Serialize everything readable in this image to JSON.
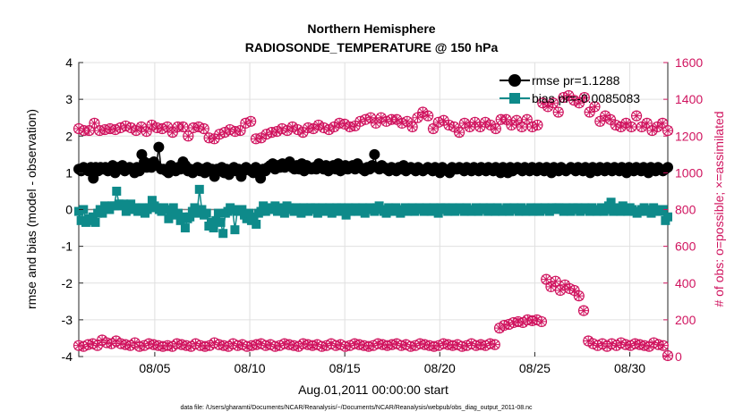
{
  "chart_data": {
    "type": "line",
    "title": "Northern Hemisphere",
    "subtitle": "RADIOSONDE_TEMPERATURE @ 150 hPa",
    "xlabel": "Aug.01,2011 00:00:00 start",
    "ylabel_left": "rmse and bias (model - observation)",
    "ylabel_right": "# of obs: o=possible; ×=assimilated",
    "x_ticks": [
      "08/05",
      "08/10",
      "08/15",
      "08/20",
      "08/25",
      "08/30"
    ],
    "x_tick_days": [
      5,
      10,
      15,
      20,
      25,
      30
    ],
    "xlim_days": [
      1,
      32
    ],
    "y_left_ticks": [
      "4",
      "3",
      "2",
      "1",
      "0",
      "-1",
      "-2",
      "-3",
      "-4"
    ],
    "ylim_left": [
      -4,
      4
    ],
    "y_right_ticks": [
      "1600",
      "1400",
      "1200",
      "1000",
      "800",
      "600",
      "400",
      "200",
      "0"
    ],
    "ylim_right": [
      0,
      1600
    ],
    "footnote": "data file: /Users/gharamti/Documents/NCAR/Reanalysis/~/Documents/NCAR/Reanalysis/webpub/obs_diag_output_2011-08.nc",
    "colors": {
      "rmse": "#000000",
      "bias": "#0e8a8a",
      "obs": "#d0145f",
      "zero_line": "#7f7f7f"
    },
    "series": [
      {
        "name": "rmse pr=1.1288",
        "axis": "left",
        "marker": "circle",
        "values": [
          1.1,
          1.05,
          1.15,
          1.1,
          1.05,
          1.15,
          0.85,
          1.15,
          1.05,
          1.15,
          1.1,
          1.15,
          1.05,
          1.1,
          1.2,
          1.0,
          1.15,
          1.1,
          1.2,
          1.05,
          1.1,
          1.15,
          1.1,
          1.0,
          1.15,
          1.05,
          1.5,
          1.3,
          1.15,
          1.25,
          1.15,
          1.3,
          1.2,
          1.7,
          1.1,
          1.1,
          1.05,
          1.0,
          1.2,
          1.1,
          1.05,
          1.15,
          1.1,
          1.3,
          1.2,
          1.05,
          1.1,
          1.0,
          1.1,
          1.15,
          1.05,
          1.1,
          1.0,
          1.15,
          1.05,
          1.1,
          0.9,
          1.1,
          1.05,
          1.15,
          1.0,
          1.1,
          0.95,
          1.1,
          1.15,
          1.05,
          1.1,
          0.9,
          1.05,
          1.15,
          1.1,
          1.05,
          1.0,
          1.15,
          1.1,
          0.85,
          1.1,
          1.05,
          1.15,
          1.2,
          1.25,
          1.1,
          1.2,
          1.15,
          1.25,
          1.15,
          1.2,
          1.3,
          1.15,
          1.1,
          1.2,
          1.1,
          1.25,
          1.05,
          1.2,
          1.15,
          1.1,
          1.15,
          1.1,
          1.25,
          1.15,
          1.1,
          1.2,
          1.05,
          1.15,
          1.2,
          1.1,
          1.25,
          1.05,
          1.1,
          1.2,
          1.1,
          1.15,
          1.2,
          1.1,
          1.25,
          1.15,
          1.1,
          1.05,
          1.15,
          1.1,
          1.2,
          1.5,
          1.15,
          1.1,
          1.2,
          1.15,
          1.1,
          1.05,
          1.15,
          1.1,
          1.05,
          1.15,
          1.1,
          1.2,
          1.05,
          1.1,
          1.15,
          1.1,
          1.05,
          1.15,
          1.1,
          1.05,
          1.1,
          1.15,
          1.1,
          1.05,
          1.15,
          1.1,
          1.0,
          1.15,
          1.1,
          1.05,
          1.0,
          1.15,
          1.1,
          1.1,
          1.15,
          1.1,
          1.05,
          1.15,
          1.1,
          1.05,
          1.15,
          1.1,
          1.05,
          1.15,
          1.1,
          1.05,
          1.15,
          1.1,
          1.05,
          1.15,
          1.1,
          1.0,
          1.15,
          1.1,
          1.0,
          1.15,
          1.05,
          1.1,
          1.15,
          1.1,
          1.05,
          1.15,
          1.1,
          1.05,
          1.15,
          1.1,
          1.05,
          1.15,
          1.1,
          1.05,
          1.15,
          1.1,
          1.0,
          1.15,
          1.1,
          1.05,
          1.15,
          1.1,
          1.05,
          1.1,
          1.15,
          1.1,
          1.05,
          1.15,
          1.1,
          1.05,
          1.15,
          1.1,
          1.0,
          1.15,
          1.1,
          1.05,
          1.15,
          1.1,
          1.05,
          1.15,
          1.1,
          1.05,
          1.15,
          1.1,
          1.05,
          1.15,
          1.1,
          1.0,
          1.15,
          1.1,
          1.05,
          1.15,
          1.1,
          1.05,
          1.15,
          1.1,
          1.0,
          1.15,
          1.1,
          1.05,
          1.15,
          1.1,
          1.05,
          1.1,
          1.15
        ]
      },
      {
        "name": "bias pr=-0.0085083",
        "axis": "left",
        "marker": "square",
        "values": [
          -0.05,
          -0.3,
          0.0,
          -0.35,
          -0.25,
          -0.3,
          -0.2,
          -0.35,
          -0.1,
          0.0,
          -0.1,
          0.1,
          0.05,
          0.0,
          0.1,
          0.1,
          0.5,
          0.15,
          0.1,
          0.15,
          -0.05,
          0.05,
          0.15,
          0.0,
          0.05,
          -0.05,
          0.0,
          0.05,
          -0.1,
          0.0,
          0.05,
          0.25,
          0.1,
          0.05,
          0.0,
          -0.05,
          0.05,
          0.0,
          -0.25,
          -0.05,
          0.05,
          -0.15,
          -0.1,
          -0.3,
          -0.2,
          -0.5,
          -0.25,
          -0.2,
          -0.05,
          0.05,
          -0.1,
          0.55,
          0.0,
          -0.15,
          -0.1,
          -0.45,
          -0.35,
          -0.5,
          -0.3,
          -0.1,
          -0.35,
          -0.65,
          -0.1,
          -0.05,
          0.05,
          0.0,
          -0.55,
          -0.05,
          0.0,
          0.0,
          -0.15,
          -0.25,
          -0.1,
          -0.3,
          -0.2,
          -0.4,
          -0.1,
          -0.05,
          0.1,
          -0.05,
          0.05,
          0.0,
          0.05,
          0.1,
          -0.05,
          0.05,
          0.0,
          -0.1,
          0.1,
          0.05,
          0.0,
          -0.05,
          0.05,
          0.0,
          -0.1,
          0.05,
          0.0,
          -0.05,
          0.05,
          0.0,
          0.05,
          -0.1,
          0.0,
          0.05,
          -0.05,
          0.0,
          0.05,
          -0.1,
          0.0,
          0.05,
          -0.05,
          0.05,
          0.0,
          -0.15,
          0.05,
          -0.05,
          0.0,
          0.05,
          -0.05,
          0.0,
          0.05,
          -0.1,
          0.0,
          0.05,
          0.0,
          -0.05,
          0.05,
          0.1,
          0.0,
          -0.05,
          -0.1,
          0.05,
          0.0,
          -0.05,
          0.05,
          0.0,
          -0.1,
          0.0,
          0.05,
          -0.05,
          0.0,
          0.05,
          -0.05,
          0.0,
          0.05,
          0.0,
          -0.05,
          0.05,
          0.0,
          -0.05,
          0.05,
          0.0,
          -0.1,
          0.05,
          0.0,
          0.05,
          -0.05,
          0.0,
          0.05,
          -0.05,
          0.0,
          0.05,
          0.0,
          -0.05,
          0.05,
          0.0,
          -0.05,
          0.0,
          0.05,
          -0.05,
          0.0,
          0.05,
          0.0,
          -0.05,
          0.05,
          0.0,
          -0.05,
          0.05,
          0.0,
          -0.05,
          0.0,
          0.05,
          -0.05,
          0.0,
          0.05,
          0.0,
          -0.05,
          0.05,
          0.0,
          -0.05,
          0.0,
          0.05,
          -0.05,
          0.0,
          0.05,
          -0.05,
          0.0,
          0.05,
          0.0,
          -0.05,
          0.05,
          0.0,
          0.05,
          0.05,
          0.0,
          -0.05,
          0.05,
          0.0,
          -0.05,
          0.05,
          0.0,
          0.05,
          -0.05,
          0.0,
          0.05,
          0.0,
          -0.05,
          0.05,
          0.0,
          -0.05,
          0.0,
          0.05,
          -0.05,
          0.0,
          0.1,
          0.2,
          -0.05,
          0.05,
          0.0,
          -0.05,
          0.1,
          0.0,
          -0.05,
          0.05,
          0.0,
          -0.05,
          -0.1,
          -0.05,
          0.0,
          0.05,
          -0.05,
          0.0,
          -0.1,
          0.05,
          -0.05,
          0.0,
          -0.05,
          0.0,
          -0.3,
          -0.2
        ]
      },
      {
        "name": "# obs possible / assimilated",
        "axis": "right",
        "marker": "circle-star",
        "values": [
          1240,
          1230,
          1230,
          1270,
          1230,
          1235,
          1240,
          1235,
          1245,
          1255,
          1245,
          1230,
          1250,
          1225,
          1260,
          1245,
          1240,
          1250,
          1220,
          1250,
          1250,
          1200,
          1245,
          1250,
          1240,
          1190,
          1185,
          1210,
          1220,
          1235,
          1225,
          1230,
          1270,
          1280,
          1185,
          1190,
          1210,
          1220,
          1225,
          1240,
          1230,
          1250,
          1235,
          1220,
          1245,
          1240,
          1260,
          1245,
          1235,
          1250,
          1270,
          1265,
          1250,
          1255,
          1280,
          1290,
          1300,
          1270,
          1300,
          1280,
          1290,
          1290,
          1270,
          1280,
          1250,
          1300,
          1330,
          1310,
          1240,
          1275,
          1285,
          1260,
          1250,
          1220,
          1270,
          1250,
          1275,
          1250,
          1275,
          1260,
          1240,
          1290,
          1290,
          1260,
          1285,
          1250,
          1290,
          1250,
          1260
        ]
      }
    ],
    "obs_tail_values": [
      1380,
      1360,
      1380,
      1330,
      1410,
      1420,
      1395,
      1380,
      1410,
      1330,
      1360,
      1280,
      1310,
      1290,
      1260,
      1250,
      1270,
      1250,
      1310,
      1250,
      1270,
      1230,
      1250,
      1270,
      1230
    ],
    "obs_low_values": [
      60,
      55,
      65,
      70,
      60,
      90,
      75,
      70,
      85,
      70,
      65,
      60,
      75,
      55,
      60,
      70,
      65,
      60,
      55,
      60,
      55,
      70,
      65,
      60,
      55,
      70,
      60,
      55,
      60,
      75,
      65,
      60,
      55,
      70,
      60,
      65,
      55,
      60,
      65,
      70,
      60,
      65,
      55,
      60,
      70,
      65,
      60,
      55,
      70,
      65,
      60,
      65,
      55,
      60,
      70,
      60,
      65,
      55,
      60,
      70,
      65,
      60,
      55,
      60,
      70,
      65,
      60,
      65,
      70,
      60,
      65,
      55,
      60,
      70,
      65,
      60,
      55,
      60,
      70,
      65,
      60,
      65,
      55,
      60,
      70,
      60,
      65,
      60,
      70,
      65,
      155,
      170,
      175,
      185,
      190,
      185,
      200,
      195,
      200,
      190,
      420,
      380,
      410,
      360,
      390,
      370,
      360,
      330,
      250,
      85,
      70,
      60,
      70,
      55,
      70,
      60,
      75,
      65,
      60,
      70,
      65,
      60,
      55,
      75,
      65,
      60,
      5
    ]
  },
  "legend": {
    "rmse": "rmse pr=1.1288",
    "bias": "bias pr=-0.0085083"
  }
}
